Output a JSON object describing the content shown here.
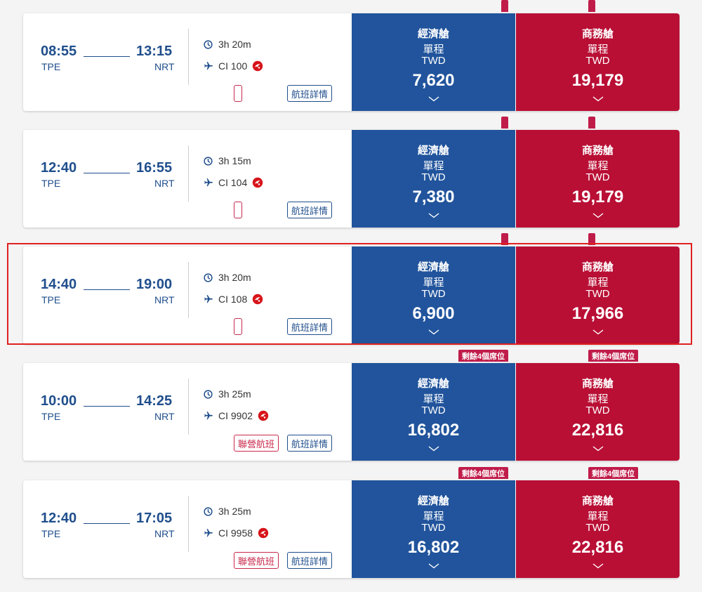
{
  "colors": {
    "brand_blue": "#1f4e8c",
    "economy_bg": "#21549c",
    "business_bg": "#b90f35",
    "seats_badge": "#c01c4a",
    "highlight": "#e02020"
  },
  "icons": {
    "duration": "clock-icon",
    "flight": "airplane-icon",
    "partner": "jal-crane-logo-icon",
    "expand": "chevron-down-icon"
  },
  "flights": [
    {
      "dep_time": "08:55",
      "dep_code": "TPE",
      "arr_time": "13:15",
      "arr_code": "NRT",
      "duration": "3h 20m",
      "flight_no": "CI 100",
      "partner_logo": false,
      "codeshare": false,
      "details_label": "航班詳情",
      "economy": {
        "cabin": "經濟艙",
        "trip": "單程",
        "currency": "TWD",
        "price": "7,620",
        "seats": ""
      },
      "business": {
        "cabin": "商務艙",
        "trip": "單程",
        "currency": "TWD",
        "price": "19,179",
        "seats": ""
      }
    },
    {
      "dep_time": "12:40",
      "dep_code": "TPE",
      "arr_time": "16:55",
      "arr_code": "NRT",
      "duration": "3h 15m",
      "flight_no": "CI 104",
      "partner_logo": false,
      "codeshare": false,
      "details_label": "航班詳情",
      "economy": {
        "cabin": "經濟艙",
        "trip": "單程",
        "currency": "TWD",
        "price": "7,380",
        "seats": ""
      },
      "business": {
        "cabin": "商務艙",
        "trip": "單程",
        "currency": "TWD",
        "price": "19,179",
        "seats": ""
      }
    },
    {
      "dep_time": "14:40",
      "dep_code": "TPE",
      "arr_time": "19:00",
      "arr_code": "NRT",
      "duration": "3h 20m",
      "flight_no": "CI 108",
      "partner_logo": false,
      "codeshare": false,
      "details_label": "航班詳情",
      "highlighted": true,
      "economy": {
        "cabin": "經濟艙",
        "trip": "單程",
        "currency": "TWD",
        "price": "6,900",
        "seats": ""
      },
      "business": {
        "cabin": "商務艙",
        "trip": "單程",
        "currency": "TWD",
        "price": "17,966",
        "seats": ""
      }
    },
    {
      "dep_time": "10:00",
      "dep_code": "TPE",
      "arr_time": "14:25",
      "arr_code": "NRT",
      "duration": "3h 25m",
      "flight_no": "CI 9902",
      "partner_logo": true,
      "codeshare": true,
      "codeshare_label": "聯營航班",
      "details_label": "航班詳情",
      "economy": {
        "cabin": "經濟艙",
        "trip": "單程",
        "currency": "TWD",
        "price": "16,802",
        "seats": "剩餘4個席位"
      },
      "business": {
        "cabin": "商務艙",
        "trip": "單程",
        "currency": "TWD",
        "price": "22,816",
        "seats": "剩餘4個席位"
      }
    },
    {
      "dep_time": "12:40",
      "dep_code": "TPE",
      "arr_time": "17:05",
      "arr_code": "NRT",
      "duration": "3h 25m",
      "flight_no": "CI 9958",
      "partner_logo": true,
      "codeshare": true,
      "codeshare_label": "聯營航班",
      "details_label": "航班詳情",
      "economy": {
        "cabin": "經濟艙",
        "trip": "單程",
        "currency": "TWD",
        "price": "16,802",
        "seats": "剩餘4個席位"
      },
      "business": {
        "cabin": "商務艙",
        "trip": "單程",
        "currency": "TWD",
        "price": "22,816",
        "seats": "剩餘4個席位"
      }
    }
  ]
}
